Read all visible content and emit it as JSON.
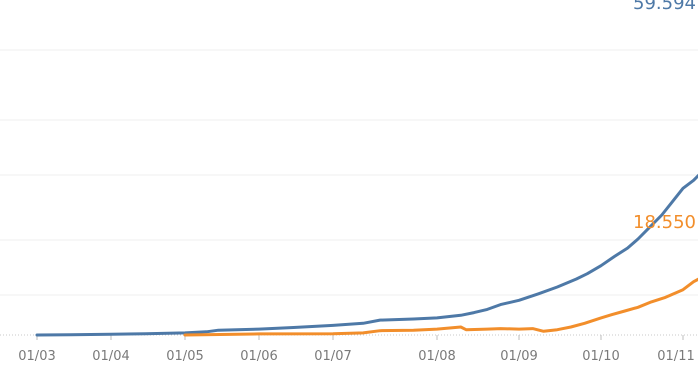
{
  "chart_data": {
    "type": "line",
    "title": "",
    "xlabel": "",
    "ylabel": "",
    "grid": true,
    "ylim": [
      0,
      60000
    ],
    "x_ticks": [
      "01/03",
      "01/04",
      "01/05",
      "01/06",
      "01/07",
      "01/08",
      "01/09",
      "01/10",
      "01/11"
    ],
    "series": [
      {
        "color": "#4e79a7",
        "end_label": "59.594",
        "points": [
          [
            "2020-03-01",
            0
          ],
          [
            "2020-03-15",
            50
          ],
          [
            "2020-04-01",
            150
          ],
          [
            "2020-04-15",
            250
          ],
          [
            "2020-05-01",
            400
          ],
          [
            "2020-05-10",
            600
          ],
          [
            "2020-05-15",
            900
          ],
          [
            "2020-06-01",
            1100
          ],
          [
            "2020-06-15",
            1400
          ],
          [
            "2020-07-01",
            1800
          ],
          [
            "2020-07-10",
            2200
          ],
          [
            "2020-07-15",
            2800
          ],
          [
            "2020-07-25",
            3000
          ],
          [
            "2020-08-01",
            3200
          ],
          [
            "2020-08-10",
            3700
          ],
          [
            "2020-08-15",
            4200
          ],
          [
            "2020-08-20",
            4800
          ],
          [
            "2020-08-25",
            5700
          ],
          [
            "2020-09-01",
            6500
          ],
          [
            "2020-09-08",
            7700
          ],
          [
            "2020-09-15",
            9000
          ],
          [
            "2020-09-22",
            10500
          ],
          [
            "2020-09-26",
            11500
          ],
          [
            "2020-10-01",
            13000
          ],
          [
            "2020-10-06",
            14700
          ],
          [
            "2020-10-11",
            16300
          ],
          [
            "2020-10-15",
            18000
          ],
          [
            "2020-10-19",
            20000
          ],
          [
            "2020-10-24",
            22500
          ],
          [
            "2020-10-28",
            25000
          ],
          [
            "2020-11-01",
            27500
          ],
          [
            "2020-11-05",
            29000
          ],
          [
            "2020-11-10",
            31500
          ],
          [
            "2020-11-15",
            34000
          ],
          [
            "2020-11-20",
            36500
          ],
          [
            "2020-11-25",
            39000
          ],
          [
            "2020-11-30",
            42000
          ],
          [
            "2020-12-05",
            44500
          ],
          [
            "2020-12-10",
            47000
          ],
          [
            "2020-12-15",
            49500
          ],
          [
            "2020-12-20",
            51500
          ],
          [
            "2020-12-25",
            54000
          ],
          [
            "2020-12-30",
            56500
          ],
          [
            "2021-01-04",
            58500
          ],
          [
            "2021-01-07",
            59594
          ]
        ]
      },
      {
        "color": "#f28e2b",
        "end_label": "18.550",
        "points": [
          [
            "2020-05-01",
            0
          ],
          [
            "2020-06-01",
            200
          ],
          [
            "2020-07-01",
            250
          ],
          [
            "2020-07-10",
            400
          ],
          [
            "2020-07-15",
            800
          ],
          [
            "2020-07-25",
            900
          ],
          [
            "2020-08-01",
            1100
          ],
          [
            "2020-08-10",
            1500
          ],
          [
            "2020-08-12",
            1000
          ],
          [
            "2020-08-20",
            1100
          ],
          [
            "2020-08-25",
            1200
          ],
          [
            "2020-09-01",
            1100
          ],
          [
            "2020-09-06",
            1200
          ],
          [
            "2020-09-10",
            700
          ],
          [
            "2020-09-15",
            1000
          ],
          [
            "2020-09-20",
            1500
          ],
          [
            "2020-09-25",
            2200
          ],
          [
            "2020-10-01",
            3200
          ],
          [
            "2020-10-05",
            3800
          ],
          [
            "2020-10-10",
            4500
          ],
          [
            "2020-10-15",
            5200
          ],
          [
            "2020-10-20",
            6200
          ],
          [
            "2020-10-25",
            7000
          ],
          [
            "2020-11-01",
            8500
          ],
          [
            "2020-11-05",
            10000
          ],
          [
            "2020-11-10",
            11300
          ],
          [
            "2020-11-15",
            12000
          ],
          [
            "2020-11-20",
            12800
          ],
          [
            "2020-11-25",
            13500
          ],
          [
            "2020-12-01",
            14000
          ],
          [
            "2020-12-10",
            14500
          ],
          [
            "2020-12-20",
            15000
          ],
          [
            "2020-12-25",
            15500
          ],
          [
            "2021-01-01",
            16500
          ],
          [
            "2021-01-05",
            17500
          ],
          [
            "2021-01-07",
            18550
          ]
        ]
      }
    ]
  }
}
